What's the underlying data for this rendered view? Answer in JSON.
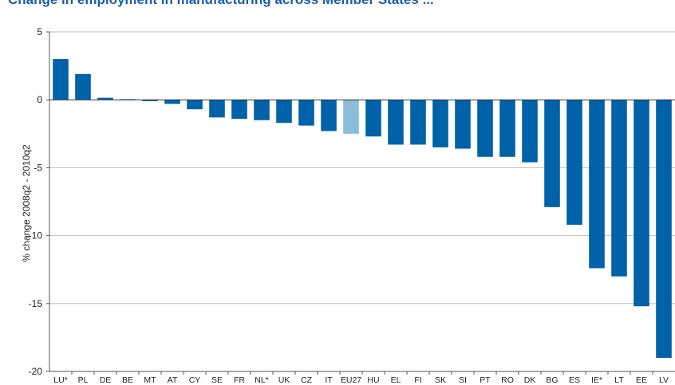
{
  "colors": {
    "bar": "#0062a8",
    "highlight": "#8cbcd9",
    "grid": "#bfbfbf",
    "axis": "#555555",
    "title": "#1b5ea8"
  },
  "chart_data": {
    "type": "bar",
    "title": "",
    "xlabel": "",
    "ylabel": "% change 2008q2 - 2010q2",
    "ylim": [
      -20,
      5
    ],
    "yticks": [
      5,
      0,
      -5,
      -10,
      -15,
      -20
    ],
    "grid": true,
    "highlight_category": "EU27",
    "categories": [
      "LU*",
      "PL",
      "DE",
      "BE",
      "MT",
      "AT",
      "CY",
      "SE",
      "FR",
      "NL*",
      "UK",
      "CZ",
      "IT",
      "EU27",
      "HU",
      "EL",
      "FI",
      "SK",
      "SI",
      "PT",
      "RO",
      "DK",
      "BG",
      "ES",
      "IE*",
      "LT",
      "EE",
      "LV"
    ],
    "values": [
      3.0,
      1.9,
      0.15,
      0.05,
      -0.1,
      -0.3,
      -0.7,
      -1.3,
      -1.4,
      -1.5,
      -1.7,
      -1.9,
      -2.3,
      -2.5,
      -2.7,
      -3.3,
      -3.3,
      -3.5,
      -3.6,
      -4.2,
      -4.2,
      -4.6,
      -7.9,
      -9.2,
      -12.4,
      -13.0,
      -15.2,
      -19.0
    ]
  }
}
